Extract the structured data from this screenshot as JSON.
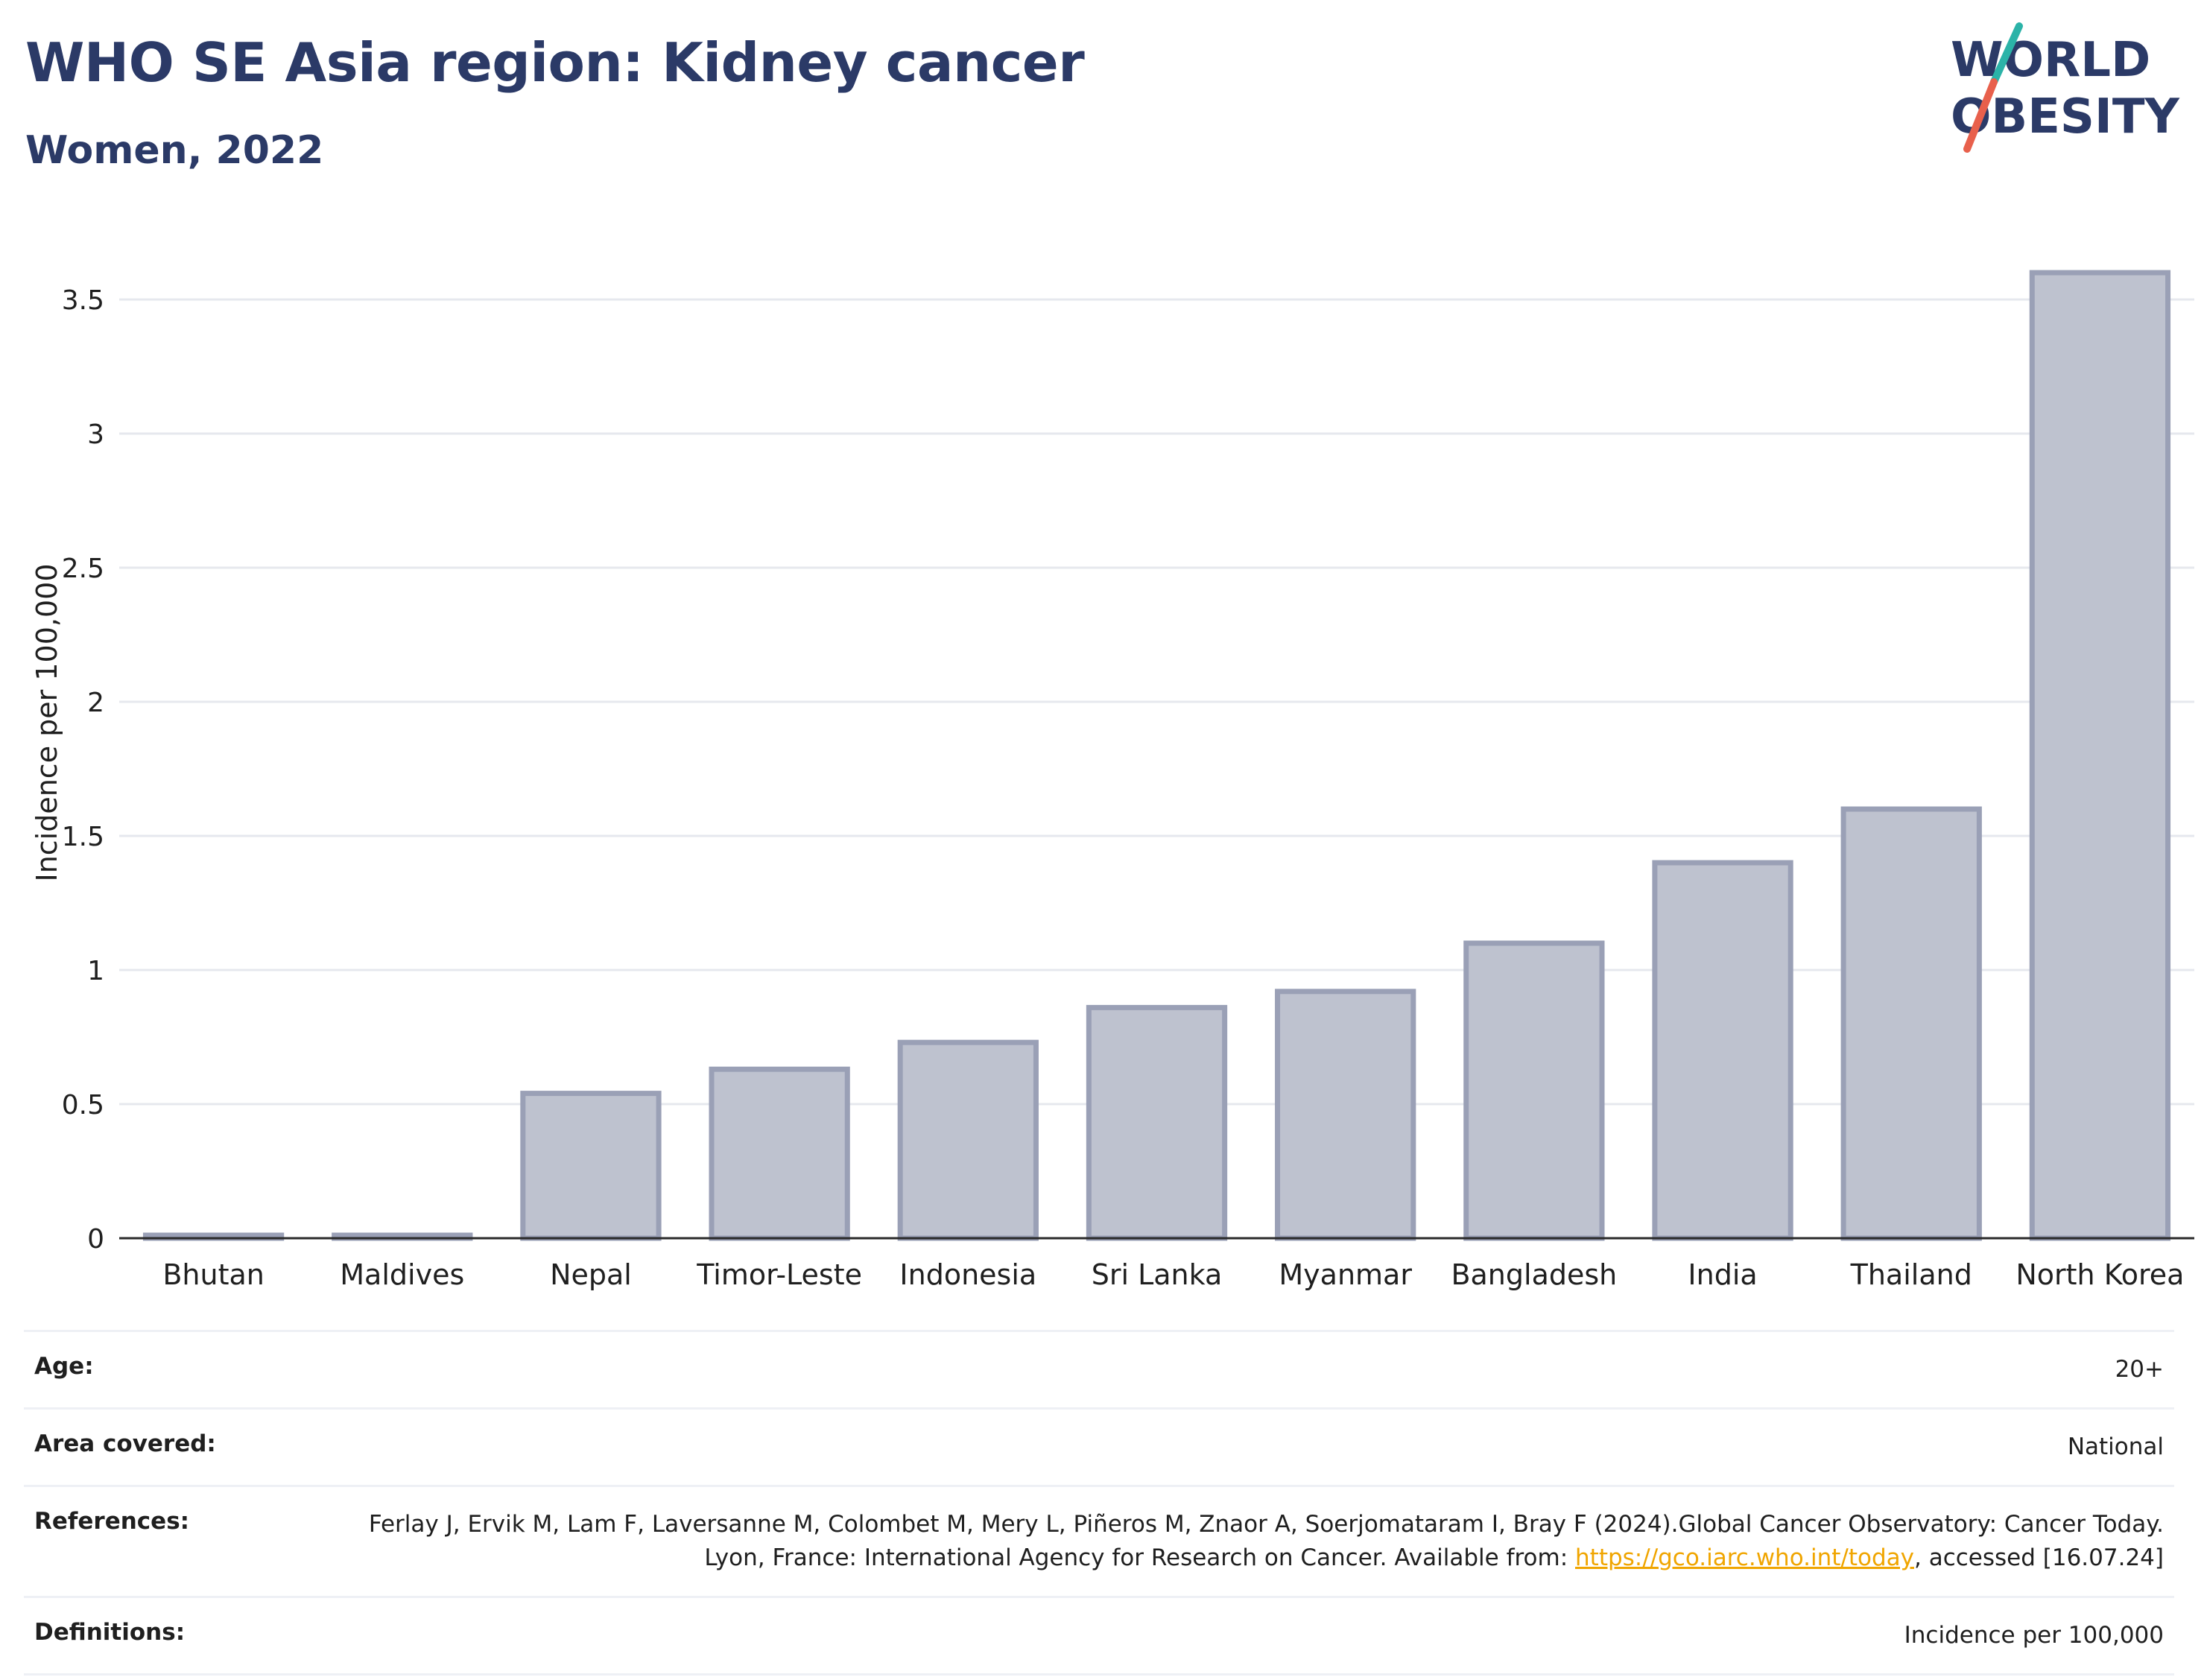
{
  "header": {
    "title": "WHO SE Asia region: Kidney cancer",
    "subtitle": "Women, 2022"
  },
  "logo": {
    "line1": "WORLD",
    "line2": "OBESITY",
    "colors": {
      "text": "#2b3a67",
      "slash_top": "#2bb3a8",
      "slash_bottom": "#e8604c"
    }
  },
  "chart_data": {
    "type": "bar",
    "categories": [
      "Bhutan",
      "Maldives",
      "Nepal",
      "Timor-Leste",
      "Indonesia",
      "Sri Lanka",
      "Myanmar",
      "Bangladesh",
      "India",
      "Thailand",
      "North Korea"
    ],
    "values": [
      0.01,
      0.01,
      0.54,
      0.63,
      0.73,
      0.86,
      0.92,
      1.1,
      1.4,
      1.6,
      3.6
    ],
    "title": "",
    "xlabel": "",
    "ylabel": "Incidence per 100,000",
    "ylim": [
      0,
      3.7
    ],
    "yticks": [
      0,
      0.5,
      1,
      1.5,
      2,
      2.5,
      3,
      3.5
    ],
    "ytick_labels": [
      "0",
      "0.5",
      "1",
      "1.5",
      "2",
      "2.5",
      "3",
      "3.5"
    ],
    "grid": true,
    "colors": {
      "bar_fill": "#bec2cf",
      "bar_stroke": "#9aa0b6",
      "grid": "#e6e8ee",
      "axis": "#2a2a2a"
    }
  },
  "meta": {
    "rows": [
      {
        "key": "Age:",
        "value": "20+"
      },
      {
        "key": "Area covered:",
        "value": "National"
      },
      {
        "key": "References:",
        "value_pre": "Ferlay J, Ervik M, Lam F, Laversanne M, Colombet M, Mery L, Piñeros M, Znaor A, Soerjomataram I, Bray F (2024).Global Cancer Observatory: Cancer Today. Lyon, France: International Agency for Research on Cancer. Available from: ",
        "link": "https://gco.iarc.who.int/today",
        "value_post": ", accessed [16.07.24]"
      },
      {
        "key": "Definitions:",
        "value": "Incidence per 100,000"
      }
    ]
  }
}
